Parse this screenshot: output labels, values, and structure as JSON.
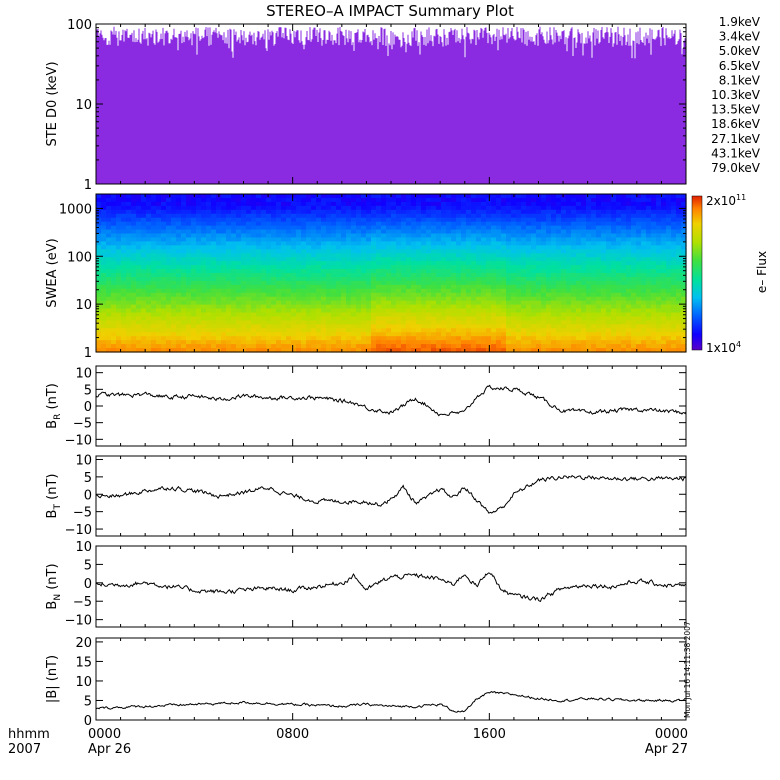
{
  "title": "STEREO–A IMPACT Summary Plot",
  "stamp": "Mon Jul 16 14:11:38 2007",
  "time_axis": {
    "label_top": "hhmm",
    "label_bottom": "2007",
    "ticks": [
      {
        "hours": 0,
        "top": "0000",
        "bottom": "Apr 26"
      },
      {
        "hours": 8,
        "top": "0800",
        "bottom": ""
      },
      {
        "hours": 16,
        "top": "1600",
        "bottom": ""
      },
      {
        "hours": 24,
        "top": "0000",
        "bottom": "Apr 27"
      }
    ]
  },
  "chart_data": [
    {
      "type": "line",
      "id": "ste",
      "ylabel": "STE D0 (keV)",
      "yscale": "log",
      "ylim": [
        1,
        100
      ],
      "yticks": [
        {
          "v": 1,
          "t": "1"
        },
        {
          "v": 10,
          "t": "10"
        },
        {
          "v": 100,
          "t": "100"
        }
      ],
      "legend_placement": "right",
      "series": [
        {
          "name": "1.9keV",
          "color": "#8a2be2",
          "level": 70,
          "spread": 0.12
        },
        {
          "name": "3.4keV",
          "color": "#3030c8",
          "level": 2.4,
          "spread": 0.18
        },
        {
          "name": "5.0keV",
          "color": "#1010ff",
          "level": 2.0,
          "spread": 0.22
        },
        {
          "name": "6.5keV",
          "color": "#0090ff",
          "level": 1.6,
          "spread": 0.12
        },
        {
          "name": "8.1keV",
          "color": "#00d0d0",
          "level": 1.5,
          "spread": 0.1
        },
        {
          "name": "10.3keV",
          "color": "#00d060",
          "level": 1.4,
          "spread": 0.1
        },
        {
          "name": "13.5keV",
          "color": "#40c000",
          "level": 1.3,
          "spread": 0.08
        },
        {
          "name": "18.6keV",
          "color": "#b0d000",
          "level": 1.25,
          "spread": 0.08
        },
        {
          "name": "27.1keV",
          "color": "#f0c000",
          "level": 1.2,
          "spread": 0.08
        },
        {
          "name": "43.1keV",
          "color": "#f07000",
          "level": 1.15,
          "spread": 0.08
        },
        {
          "name": "79.0keV",
          "color": "#e02000",
          "level": 1.1,
          "spread": 0.06
        }
      ]
    },
    {
      "type": "heatmap",
      "id": "swea",
      "ylabel": "SWEA (eV)",
      "yscale": "log",
      "ylim": [
        1,
        2000
      ],
      "yticks": [
        {
          "v": 1,
          "t": "1"
        },
        {
          "v": 10,
          "t": "10"
        },
        {
          "v": 100,
          "t": "100"
        },
        {
          "v": 1000,
          "t": "1000"
        }
      ],
      "colorbar": {
        "label": "e– Flux",
        "max_label": "2x10",
        "max_exp": "11",
        "min_label": "1x10",
        "min_exp": "4",
        "range": [
          10000,
          200000000000
        ],
        "scale": "log"
      }
    },
    {
      "type": "line",
      "id": "br",
      "ylabel_main": "B",
      "ylabel_sub": "R",
      "ylabel_unit": "(nT)",
      "ylim": [
        -12,
        12
      ],
      "yticks": [
        {
          "v": 10,
          "t": "10"
        },
        {
          "v": 5,
          "t": "5"
        },
        {
          "v": 0,
          "t": "0"
        },
        {
          "v": -5,
          "t": "−5"
        },
        {
          "v": -10,
          "t": "−10"
        }
      ],
      "series": [
        {
          "x": [
            0,
            1,
            2,
            3,
            4,
            5,
            6,
            7,
            8,
            9,
            10,
            10.5,
            11,
            12,
            12.5,
            13,
            13.5,
            14,
            15,
            15.5,
            16,
            17,
            17.5,
            18,
            19,
            20,
            21,
            22,
            23,
            24
          ],
          "y": [
            3.5,
            3.2,
            3.5,
            2.5,
            3.0,
            2.0,
            3.0,
            2.5,
            2.5,
            2.5,
            1.5,
            1.0,
            -0.5,
            -2.0,
            0.0,
            2.5,
            0.0,
            -2.5,
            -2.0,
            3.0,
            5.5,
            5.0,
            4.0,
            2.5,
            -1.5,
            -2.0,
            -1.5,
            -1.0,
            -1.5,
            -2.0
          ]
        }
      ]
    },
    {
      "type": "line",
      "id": "bt",
      "ylabel_main": "B",
      "ylabel_sub": "T",
      "ylabel_unit": "(nT)",
      "ylim": [
        -12,
        11
      ],
      "yticks": [
        {
          "v": 10,
          "t": "10"
        },
        {
          "v": 5,
          "t": "5"
        },
        {
          "v": 0,
          "t": "0"
        },
        {
          "v": -5,
          "t": "−5"
        },
        {
          "v": -10,
          "t": "−10"
        }
      ],
      "series": [
        {
          "x": [
            0,
            1,
            2,
            3,
            4,
            5,
            6,
            7,
            8,
            9,
            10,
            11,
            11.5,
            12,
            12.5,
            13,
            13.5,
            14,
            14.5,
            15,
            16,
            16.5,
            17,
            17.5,
            18,
            19,
            20,
            21,
            22,
            23,
            24
          ],
          "y": [
            -0.5,
            -0.5,
            1.0,
            2.0,
            1.0,
            -0.5,
            0.5,
            2.0,
            -0.5,
            -2.0,
            -2.0,
            -2.0,
            -3.0,
            -1.5,
            2.0,
            -2.5,
            -1.0,
            1.5,
            -1.0,
            2.0,
            -5.5,
            -4.0,
            0.0,
            2.0,
            4.0,
            5.0,
            5.0,
            4.5,
            4.5,
            4.5,
            4.5
          ]
        }
      ]
    },
    {
      "type": "line",
      "id": "bn",
      "ylabel_main": "B",
      "ylabel_sub": "N",
      "ylabel_unit": "(nT)",
      "ylim": [
        -12,
        10
      ],
      "yticks": [
        {
          "v": 10,
          "t": "10"
        },
        {
          "v": 5,
          "t": "5"
        },
        {
          "v": 0,
          "t": "0"
        },
        {
          "v": -5,
          "t": "−5"
        },
        {
          "v": -10,
          "t": "−10"
        }
      ],
      "series": [
        {
          "x": [
            0,
            1,
            2,
            3,
            4,
            5,
            6,
            7,
            8,
            9,
            10,
            10.5,
            11,
            11.5,
            12,
            13,
            14,
            14.5,
            15,
            15.5,
            16,
            16.5,
            17,
            18,
            19,
            20,
            21,
            22,
            23,
            24
          ],
          "y": [
            -0.5,
            -0.5,
            0.0,
            -1.0,
            -2.0,
            -2.5,
            -2.0,
            -1.5,
            -2.0,
            -1.0,
            0.0,
            2.0,
            -2.0,
            0.0,
            1.5,
            2.0,
            1.0,
            -0.5,
            2.5,
            -1.0,
            3.5,
            -2.0,
            -3.5,
            -4.5,
            -1.5,
            -0.5,
            -1.0,
            0.5,
            -0.5,
            -1.0
          ]
        }
      ]
    },
    {
      "type": "line",
      "id": "bmag",
      "ylabel": "|B| (nT)",
      "ylim": [
        0,
        21
      ],
      "yticks": [
        {
          "v": 20,
          "t": "20"
        },
        {
          "v": 15,
          "t": "15"
        },
        {
          "v": 10,
          "t": "10"
        },
        {
          "v": 5,
          "t": "5"
        },
        {
          "v": 0,
          "t": "0"
        }
      ],
      "series": [
        {
          "x": [
            0,
            2,
            4,
            6,
            8,
            10,
            11,
            12,
            13,
            14,
            14.5,
            15,
            15.5,
            16,
            17,
            18,
            19,
            20,
            22,
            24
          ],
          "y": [
            3.0,
            3.5,
            4.0,
            4.5,
            4.0,
            3.5,
            4.0,
            3.5,
            3.5,
            4.0,
            2.5,
            2.0,
            5.5,
            7.0,
            6.5,
            5.5,
            5.0,
            5.5,
            5.0,
            5.0
          ]
        }
      ]
    }
  ]
}
